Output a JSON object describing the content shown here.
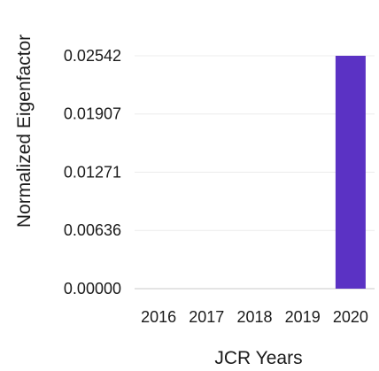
{
  "chart_data": {
    "type": "bar",
    "title": "",
    "xlabel": "JCR Years",
    "ylabel": "Normalized Eigenfactor",
    "categories": [
      "2016",
      "2017",
      "2018",
      "2019",
      "2020"
    ],
    "values": [
      null,
      null,
      null,
      null,
      0.02542
    ],
    "y_ticks": [
      "0.00000",
      "0.00636",
      "0.01271",
      "0.01907",
      "0.02542"
    ],
    "ylim": [
      0,
      0.02542
    ],
    "grid": true,
    "bar_color": "#5b32c4"
  }
}
